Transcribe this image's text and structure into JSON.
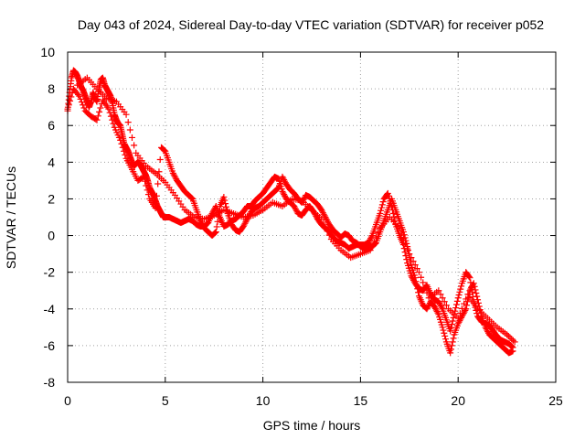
{
  "chart_data": {
    "type": "scatter",
    "title": "Day 043 of 2024, Sidereal Day-to-day VTEC variation (SDTVAR) for receiver p052",
    "xlabel": "GPS time / hours",
    "ylabel": "SDTVAR / TECUs",
    "xlim": [
      0,
      25
    ],
    "ylim": [
      -8,
      10
    ],
    "xticks": [
      "0",
      "5",
      "10",
      "15",
      "20",
      "25"
    ],
    "yticks": [
      "-8",
      "-6",
      "-4",
      "-2",
      "0",
      "2",
      "4",
      "6",
      "8",
      "10"
    ],
    "grid": true,
    "marker": "+",
    "color": "#ff0000",
    "series": [
      {
        "name": "SDTVAR",
        "points": [
          [
            0.0,
            6.8
          ],
          [
            0.1,
            7.8
          ],
          [
            0.2,
            8.6
          ],
          [
            0.3,
            9.0
          ],
          [
            0.4,
            8.9
          ],
          [
            0.5,
            8.7
          ],
          [
            0.6,
            8.4
          ],
          [
            0.7,
            8.1
          ],
          [
            0.8,
            7.9
          ],
          [
            0.9,
            7.6
          ],
          [
            1.0,
            7.3
          ],
          [
            1.1,
            7.0
          ],
          [
            1.2,
            7.3
          ],
          [
            1.3,
            7.8
          ],
          [
            1.4,
            7.5
          ],
          [
            1.5,
            7.3
          ],
          [
            1.6,
            8.0
          ],
          [
            1.7,
            8.5
          ],
          [
            1.8,
            8.6
          ],
          [
            1.9,
            8.2
          ],
          [
            2.0,
            8.0
          ],
          [
            2.1,
            7.8
          ],
          [
            2.2,
            7.6
          ],
          [
            2.3,
            7.2
          ],
          [
            2.4,
            6.6
          ],
          [
            2.5,
            6.3
          ],
          [
            2.6,
            6.1
          ],
          [
            2.7,
            6.0
          ],
          [
            2.8,
            5.5
          ],
          [
            2.9,
            5.0
          ],
          [
            3.0,
            4.8
          ],
          [
            3.1,
            4.6
          ],
          [
            3.2,
            4.3
          ],
          [
            3.3,
            4.0
          ],
          [
            3.4,
            3.8
          ],
          [
            3.5,
            3.9
          ],
          [
            3.6,
            4.0
          ],
          [
            3.7,
            3.9
          ],
          [
            3.8,
            3.7
          ],
          [
            3.9,
            3.5
          ],
          [
            4.0,
            3.3
          ],
          [
            4.1,
            3.0
          ],
          [
            4.2,
            2.6
          ],
          [
            4.3,
            2.4
          ],
          [
            4.4,
            2.2
          ],
          [
            4.5,
            1.9
          ],
          [
            4.6,
            1.6
          ],
          [
            4.7,
            1.4
          ],
          [
            4.8,
            1.2
          ],
          [
            4.9,
            1.0
          ],
          [
            5.0,
            1.0
          ],
          [
            5.2,
            1.0
          ],
          [
            5.4,
            0.9
          ],
          [
            5.6,
            0.8
          ],
          [
            5.8,
            0.7
          ],
          [
            6.0,
            0.8
          ],
          [
            6.2,
            0.9
          ],
          [
            6.4,
            0.8
          ],
          [
            6.6,
            0.6
          ],
          [
            6.8,
            0.5
          ],
          [
            7.0,
            0.5
          ],
          [
            7.2,
            0.7
          ],
          [
            7.4,
            1.2
          ],
          [
            7.6,
            1.6
          ],
          [
            7.8,
            1.0
          ],
          [
            8.0,
            0.5
          ],
          [
            8.2,
            0.6
          ],
          [
            8.4,
            0.8
          ],
          [
            8.6,
            0.9
          ],
          [
            8.8,
            1.1
          ],
          [
            9.0,
            1.3
          ],
          [
            9.2,
            1.6
          ],
          [
            9.4,
            1.6
          ],
          [
            9.6,
            1.9
          ],
          [
            9.8,
            2.1
          ],
          [
            10.0,
            2.3
          ],
          [
            10.2,
            2.6
          ],
          [
            10.4,
            2.9
          ],
          [
            10.6,
            3.2
          ],
          [
            10.8,
            3.1
          ],
          [
            11.0,
            2.4
          ],
          [
            11.2,
            2.0
          ],
          [
            11.4,
            1.8
          ],
          [
            11.6,
            1.6
          ],
          [
            11.8,
            1.2
          ],
          [
            12.0,
            1.1
          ],
          [
            12.2,
            1.4
          ],
          [
            12.4,
            1.6
          ],
          [
            12.6,
            1.3
          ],
          [
            12.8,
            0.9
          ],
          [
            13.0,
            0.6
          ],
          [
            13.2,
            0.4
          ],
          [
            13.4,
            0.2
          ],
          [
            13.6,
            -0.1
          ],
          [
            13.8,
            -0.3
          ],
          [
            14.0,
            -0.4
          ],
          [
            14.2,
            -0.5
          ],
          [
            14.4,
            -0.7
          ],
          [
            14.6,
            -0.6
          ],
          [
            14.8,
            -0.5
          ],
          [
            15.0,
            -0.5
          ],
          [
            15.2,
            -0.5
          ],
          [
            15.4,
            -0.4
          ],
          [
            15.6,
            0.0
          ],
          [
            15.8,
            0.6
          ],
          [
            16.0,
            1.2
          ],
          [
            16.2,
            2.0
          ],
          [
            16.4,
            2.3
          ],
          [
            16.6,
            1.6
          ],
          [
            16.8,
            0.6
          ],
          [
            17.0,
            0.0
          ],
          [
            17.2,
            -0.5
          ],
          [
            17.4,
            -1.5
          ],
          [
            17.6,
            -2.2
          ],
          [
            17.8,
            -2.6
          ],
          [
            18.0,
            -2.9
          ],
          [
            18.2,
            -3.0
          ],
          [
            18.4,
            -2.7
          ],
          [
            18.6,
            -3.2
          ],
          [
            18.8,
            -3.5
          ],
          [
            19.0,
            -3.6
          ],
          [
            19.2,
            -4.0
          ],
          [
            19.4,
            -4.6
          ],
          [
            19.6,
            -5.2
          ],
          [
            19.8,
            -4.3
          ],
          [
            20.0,
            -3.4
          ],
          [
            20.2,
            -2.6
          ],
          [
            20.4,
            -2.0
          ],
          [
            20.6,
            -2.3
          ],
          [
            20.8,
            -3.6
          ],
          [
            21.0,
            -4.4
          ],
          [
            21.2,
            -4.7
          ],
          [
            21.4,
            -4.8
          ],
          [
            21.6,
            -4.9
          ],
          [
            21.8,
            -5.2
          ],
          [
            22.0,
            -5.5
          ],
          [
            22.2,
            -5.7
          ],
          [
            22.4,
            -5.8
          ],
          [
            22.6,
            -5.9
          ],
          [
            22.8,
            -6.1
          ],
          [
            0.0,
            6.9
          ],
          [
            0.3,
            8.0
          ],
          [
            0.6,
            7.6
          ],
          [
            0.9,
            6.8
          ],
          [
            1.2,
            6.5
          ],
          [
            1.5,
            6.3
          ],
          [
            1.8,
            7.4
          ],
          [
            2.1,
            6.9
          ],
          [
            2.4,
            5.9
          ],
          [
            2.7,
            5.2
          ],
          [
            3.0,
            4.2
          ],
          [
            3.3,
            3.6
          ],
          [
            3.6,
            3.0
          ],
          [
            3.9,
            3.2
          ],
          [
            4.2,
            2.0
          ],
          [
            4.5,
            1.5
          ],
          [
            4.8,
            4.8
          ],
          [
            5.0,
            4.6
          ],
          [
            5.2,
            4.0
          ],
          [
            5.4,
            3.4
          ],
          [
            5.6,
            3.0
          ],
          [
            5.8,
            2.7
          ],
          [
            6.0,
            2.4
          ],
          [
            6.2,
            2.2
          ],
          [
            6.4,
            2.0
          ],
          [
            6.6,
            1.4
          ],
          [
            6.8,
            0.8
          ],
          [
            7.0,
            0.4
          ],
          [
            7.2,
            0.2
          ],
          [
            7.4,
            0.0
          ],
          [
            7.6,
            0.2
          ],
          [
            7.8,
            1.6
          ],
          [
            8.0,
            2.1
          ],
          [
            8.2,
            1.2
          ],
          [
            8.4,
            0.6
          ],
          [
            8.6,
            0.3
          ],
          [
            8.8,
            0.2
          ],
          [
            9.0,
            0.5
          ],
          [
            9.2,
            0.9
          ],
          [
            9.4,
            1.3
          ],
          [
            9.6,
            1.5
          ],
          [
            9.8,
            1.6
          ],
          [
            10.0,
            1.8
          ],
          [
            10.2,
            2.0
          ],
          [
            10.4,
            2.2
          ],
          [
            10.6,
            2.4
          ],
          [
            10.8,
            2.6
          ],
          [
            11.0,
            3.2
          ],
          [
            11.2,
            2.8
          ],
          [
            11.4,
            2.5
          ],
          [
            11.6,
            2.3
          ],
          [
            11.8,
            2.0
          ],
          [
            12.0,
            1.8
          ],
          [
            12.2,
            2.2
          ],
          [
            12.4,
            2.1
          ],
          [
            12.6,
            1.9
          ],
          [
            12.8,
            1.7
          ],
          [
            13.0,
            1.4
          ],
          [
            13.2,
            1.0
          ],
          [
            13.4,
            0.6
          ],
          [
            13.6,
            0.3
          ],
          [
            13.8,
            0.1
          ],
          [
            14.0,
            -0.1
          ],
          [
            14.2,
            0.1
          ],
          [
            14.4,
            0.0
          ],
          [
            14.6,
            -0.3
          ],
          [
            14.8,
            -0.4
          ],
          [
            15.0,
            -0.6
          ],
          [
            15.2,
            -0.7
          ],
          [
            15.4,
            -0.6
          ],
          [
            15.6,
            -0.6
          ],
          [
            15.8,
            -0.4
          ],
          [
            16.0,
            0.2
          ],
          [
            16.2,
            0.8
          ],
          [
            16.4,
            1.4
          ],
          [
            16.6,
            2.0
          ],
          [
            16.8,
            1.4
          ],
          [
            17.0,
            0.8
          ],
          [
            17.2,
            0.2
          ],
          [
            17.4,
            -0.6
          ],
          [
            17.6,
            -1.6
          ],
          [
            17.8,
            -2.3
          ],
          [
            18.0,
            -3.3
          ],
          [
            18.2,
            -3.8
          ],
          [
            18.4,
            -4.0
          ],
          [
            18.6,
            -3.6
          ],
          [
            18.8,
            -3.9
          ],
          [
            19.0,
            -4.3
          ],
          [
            19.2,
            -5.0
          ],
          [
            19.4,
            -5.8
          ],
          [
            19.6,
            -6.4
          ],
          [
            19.8,
            -5.4
          ],
          [
            20.0,
            -4.8
          ],
          [
            20.2,
            -4.4
          ],
          [
            20.4,
            -4.0
          ],
          [
            20.6,
            -3.0
          ],
          [
            20.8,
            -2.6
          ],
          [
            21.0,
            -3.5
          ],
          [
            21.2,
            -4.4
          ],
          [
            21.4,
            -5.0
          ],
          [
            21.6,
            -5.4
          ],
          [
            21.8,
            -5.6
          ],
          [
            22.0,
            -5.8
          ],
          [
            22.2,
            -6.0
          ],
          [
            22.4,
            -6.2
          ],
          [
            22.6,
            -6.4
          ],
          [
            22.8,
            -6.3
          ],
          [
            0.5,
            8.2
          ],
          [
            1.0,
            8.6
          ],
          [
            1.5,
            8.0
          ],
          [
            2.0,
            7.5
          ],
          [
            2.5,
            7.3
          ],
          [
            3.0,
            6.6
          ],
          [
            3.5,
            4.5
          ],
          [
            4.0,
            3.8
          ],
          [
            4.5,
            3.4
          ],
          [
            5.0,
            2.9
          ],
          [
            5.5,
            2.2
          ],
          [
            6.0,
            1.4
          ],
          [
            6.5,
            1.0
          ],
          [
            7.0,
            0.9
          ],
          [
            7.5,
            1.1
          ],
          [
            8.0,
            1.4
          ],
          [
            8.5,
            1.2
          ],
          [
            9.0,
            1.0
          ],
          [
            9.5,
            1.1
          ],
          [
            10.0,
            1.4
          ],
          [
            10.5,
            1.8
          ],
          [
            11.0,
            1.6
          ],
          [
            11.5,
            2.0
          ],
          [
            12.0,
            1.9
          ],
          [
            12.5,
            1.4
          ],
          [
            13.0,
            0.9
          ],
          [
            13.5,
            -0.2
          ],
          [
            14.0,
            -0.8
          ],
          [
            14.5,
            -1.2
          ],
          [
            15.0,
            -1.0
          ],
          [
            15.5,
            -0.8
          ],
          [
            16.0,
            0.4
          ],
          [
            16.5,
            1.0
          ],
          [
            17.0,
            0.4
          ],
          [
            17.5,
            -1.0
          ],
          [
            18.0,
            -2.0
          ],
          [
            18.5,
            -3.4
          ],
          [
            19.0,
            -3.0
          ],
          [
            19.5,
            -4.0
          ],
          [
            20.0,
            -4.5
          ],
          [
            20.5,
            -3.2
          ],
          [
            21.0,
            -4.0
          ],
          [
            21.5,
            -4.5
          ],
          [
            22.0,
            -5.0
          ],
          [
            22.5,
            -5.4
          ],
          [
            22.9,
            -5.8
          ]
        ]
      }
    ]
  }
}
